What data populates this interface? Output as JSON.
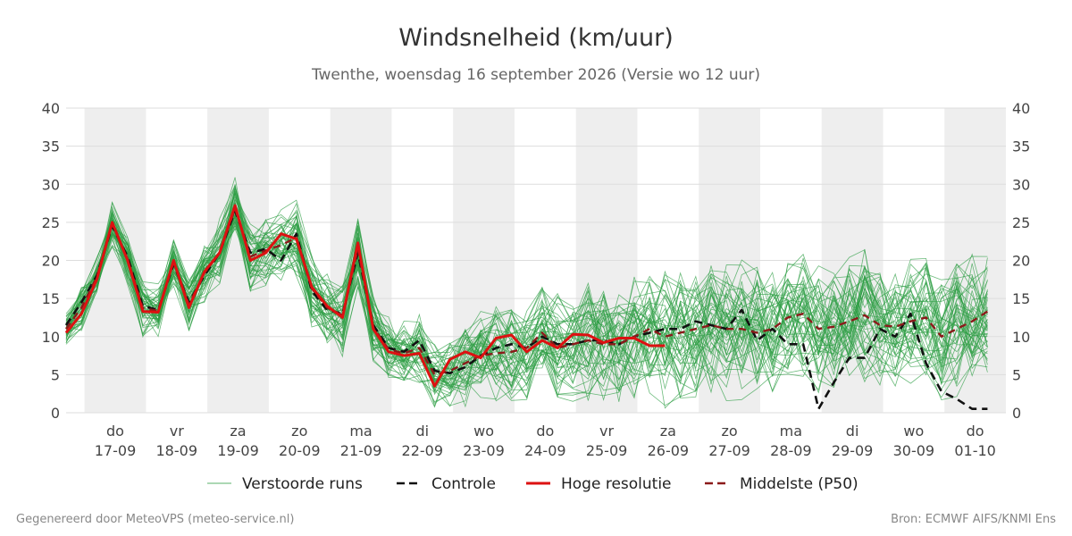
{
  "chart_data": {
    "type": "line",
    "title": "Windsnelheid (km/uur)",
    "subtitle": "Twenthe, woensdag 16 september 2026 (Versie wo 12 uur)",
    "ylim": [
      0,
      40
    ],
    "yticks": [
      0,
      5,
      10,
      15,
      20,
      25,
      30,
      35,
      40
    ],
    "grid": true,
    "x_range_days": [
      16.7,
      32.0
    ],
    "x_day_ticks": [
      {
        "day": 17,
        "weekday": "do",
        "date": "17-09"
      },
      {
        "day": 18,
        "weekday": "vr",
        "date": "18-09"
      },
      {
        "day": 19,
        "weekday": "za",
        "date": "19-09"
      },
      {
        "day": 20,
        "weekday": "zo",
        "date": "20-09"
      },
      {
        "day": 21,
        "weekday": "ma",
        "date": "21-09"
      },
      {
        "day": 22,
        "weekday": "di",
        "date": "22-09"
      },
      {
        "day": 23,
        "weekday": "wo",
        "date": "23-09"
      },
      {
        "day": 24,
        "weekday": "do",
        "date": "24-09"
      },
      {
        "day": 25,
        "weekday": "vr",
        "date": "25-09"
      },
      {
        "day": 26,
        "weekday": "za",
        "date": "26-09"
      },
      {
        "day": 27,
        "weekday": "zo",
        "date": "27-09"
      },
      {
        "day": 28,
        "weekday": "ma",
        "date": "28-09"
      },
      {
        "day": 29,
        "weekday": "di",
        "date": "29-09"
      },
      {
        "day": 30,
        "weekday": "wo",
        "date": "30-09"
      },
      {
        "day": 31,
        "weekday": "do",
        "date": "01-10"
      }
    ],
    "night_bands_days": [
      [
        17.0,
        18.0
      ],
      [
        19.0,
        20.0
      ],
      [
        21.0,
        22.0
      ],
      [
        23.0,
        24.0
      ],
      [
        25.0,
        26.0
      ],
      [
        27.0,
        28.0
      ],
      [
        29.0,
        30.0
      ],
      [
        31.0,
        32.0
      ]
    ],
    "ensemble_count": 50,
    "ensemble_spread": [
      1.5,
      2,
      2,
      2,
      2.2,
      2.5,
      2.5,
      2.2,
      2.5,
      2.8,
      3,
      3,
      3,
      3,
      3.2,
      3.5,
      3.5,
      3.5,
      3.5,
      3.5,
      3.2,
      3,
      3,
      3,
      3,
      3.5,
      4,
      4,
      4.5,
      4.5,
      4.5,
      5,
      5,
      5,
      5.5,
      5.5,
      5.5,
      5.5,
      5.5,
      6,
      6,
      6,
      6,
      6,
      6,
      6,
      6,
      6,
      6,
      6,
      6,
      6,
      6,
      6,
      6,
      6,
      6,
      6,
      6,
      6,
      6
    ],
    "series": [
      {
        "name": "Hoge resolutie",
        "color": "#dd1111",
        "x": [
          16.7,
          16.95,
          17.2,
          17.45,
          17.7,
          17.95,
          18.2,
          18.45,
          18.7,
          18.95,
          19.2,
          19.45,
          19.7,
          19.95,
          20.2,
          20.45,
          20.7,
          20.95,
          21.2,
          21.45,
          21.7,
          21.95,
          22.2,
          22.45,
          22.7,
          22.95,
          23.2,
          23.45,
          23.7,
          23.95,
          24.2,
          24.45,
          24.7,
          24.95,
          25.2,
          25.45,
          25.7,
          25.95,
          26.2,
          26.45
        ],
        "values": [
          10.5,
          13.0,
          17.5,
          25.0,
          20.0,
          13.3,
          13.2,
          20.0,
          13.8,
          18.5,
          21.0,
          27.2,
          20.0,
          21.0,
          23.5,
          22.8,
          16.5,
          14.0,
          12.5,
          22.3,
          11.0,
          8.0,
          7.5,
          7.8,
          3.5,
          7.0,
          8.0,
          7.2,
          9.8,
          10.2,
          8.0,
          9.5,
          8.5,
          10.3,
          10.2,
          9.2,
          9.8,
          9.8,
          8.8,
          8.8
        ]
      },
      {
        "name": "Controle",
        "color": "#111111",
        "x": [
          16.7,
          16.95,
          17.2,
          17.45,
          17.7,
          17.95,
          18.2,
          18.45,
          18.7,
          18.95,
          19.2,
          19.45,
          19.7,
          19.95,
          20.2,
          20.45,
          20.7,
          20.95,
          21.2,
          21.45,
          21.7,
          21.95,
          22.2,
          22.45,
          22.7,
          22.95,
          23.2,
          23.45,
          23.7,
          23.95,
          24.2,
          24.45,
          24.7,
          24.95,
          25.2,
          25.45,
          25.7,
          25.95,
          26.2,
          26.45,
          26.7,
          26.95,
          27.2,
          27.45,
          27.7,
          27.95,
          28.2,
          28.45,
          28.7,
          28.95,
          29.2,
          29.45,
          29.7,
          29.95,
          30.2,
          30.45,
          30.7,
          30.95,
          31.2,
          31.45,
          31.7
        ],
        "values": [
          11.5,
          14.5,
          18.0,
          24.5,
          20.5,
          14.0,
          13.5,
          19.5,
          14.5,
          18.0,
          21.0,
          26.5,
          21.0,
          21.5,
          20.0,
          23.5,
          16.0,
          13.5,
          13.0,
          21.0,
          11.5,
          8.5,
          8.0,
          9.5,
          5.5,
          5.2,
          6.0,
          7.5,
          8.5,
          9.0,
          8.5,
          10.0,
          9.0,
          9.0,
          9.5,
          9.5,
          9.0,
          10.0,
          10.5,
          11.0,
          11.0,
          12.0,
          11.5,
          11.0,
          13.5,
          9.5,
          11.0,
          9.0,
          9.0,
          0.5,
          4.0,
          7.2,
          7.2,
          11.0,
          10.0,
          13.0,
          6.5,
          2.8,
          1.8,
          0.5,
          0.5
        ]
      },
      {
        "name": "Middelste (P50)",
        "color": "#8b1a1a",
        "x": [
          16.7,
          16.95,
          17.2,
          17.45,
          17.7,
          17.95,
          18.2,
          18.45,
          18.7,
          18.95,
          19.2,
          19.45,
          19.7,
          19.95,
          20.2,
          20.45,
          20.7,
          20.95,
          21.2,
          21.45,
          21.7,
          21.95,
          22.2,
          22.45,
          22.7,
          22.95,
          23.2,
          23.45,
          23.7,
          23.95,
          24.2,
          24.45,
          24.7,
          24.95,
          25.2,
          25.45,
          25.7,
          25.95,
          26.2,
          26.45,
          26.7,
          26.95,
          27.2,
          27.45,
          27.7,
          27.95,
          28.2,
          28.45,
          28.7,
          28.95,
          29.2,
          29.45,
          29.7,
          29.95,
          30.2,
          30.45,
          30.7,
          30.95,
          31.2,
          31.45,
          31.7
        ],
        "values": [
          11.0,
          13.8,
          17.8,
          24.8,
          20.2,
          13.7,
          13.4,
          19.8,
          14.2,
          18.3,
          21.0,
          26.8,
          20.5,
          21.3,
          22.0,
          23.0,
          16.3,
          13.8,
          12.8,
          21.5,
          11.2,
          8.3,
          7.8,
          8.5,
          5.0,
          5.5,
          6.5,
          7.5,
          7.8,
          8.0,
          8.5,
          10.5,
          8.5,
          9.0,
          9.5,
          9.0,
          9.0,
          10.0,
          11.0,
          10.0,
          10.5,
          11.0,
          11.5,
          11.0,
          11.0,
          10.5,
          11.0,
          12.5,
          13.0,
          11.0,
          11.3,
          12.0,
          12.8,
          11.5,
          11.3,
          12.0,
          12.5,
          10.0,
          11.0,
          12.0,
          13.3
        ]
      }
    ],
    "legend": [
      {
        "label": "Verstoorde runs",
        "color": "#2e9e44",
        "style": "thin"
      },
      {
        "label": "Controle",
        "color": "#111111",
        "style": "dashed"
      },
      {
        "label": "Hoge resolutie",
        "color": "#dd1111",
        "style": "solid"
      },
      {
        "label": "Middelste (P50)",
        "color": "#8b1a1a",
        "style": "dashed"
      }
    ],
    "legend_placement": "bottom"
  },
  "footer": {
    "left": "Gegenereerd door MeteoVPS (meteo-service.nl)",
    "right": "Bron: ECMWF AIFS/KNMI Ens"
  },
  "colors": {
    "ensemble": "#2e9e44",
    "night_band": "#eeeeee",
    "grid": "#dddddd"
  }
}
